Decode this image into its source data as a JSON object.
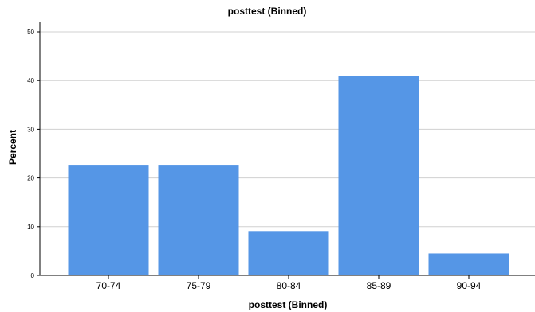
{
  "chart_data": {
    "type": "bar",
    "title": "posttest (Binned)",
    "xlabel": "posttest (Binned)",
    "ylabel": "Percent",
    "categories": [
      "70-74",
      "75-79",
      "80-84",
      "85-89",
      "90-94"
    ],
    "values": [
      22.7,
      22.7,
      9.1,
      40.9,
      4.5
    ],
    "ylim": [
      0,
      50
    ],
    "yticks": [
      "0",
      "10",
      "20",
      "30",
      "40",
      "50"
    ],
    "grid": true,
    "bar_color": "#5596E6",
    "grid_color": "#D0D0D0",
    "axis_color": "#000000"
  }
}
